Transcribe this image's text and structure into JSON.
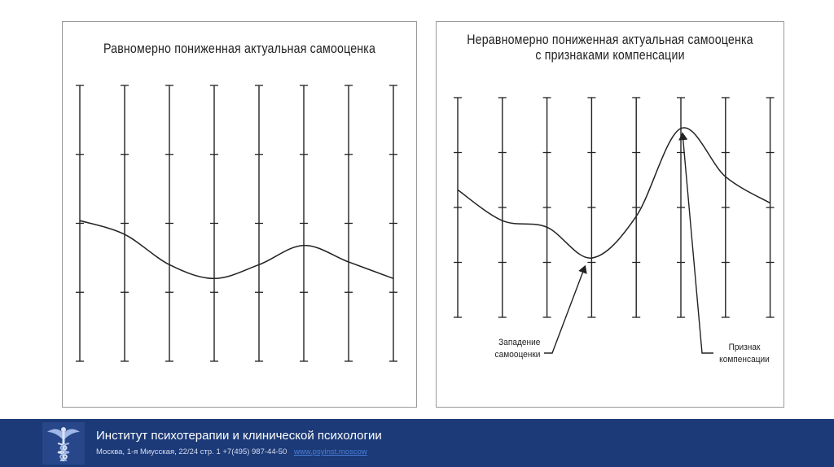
{
  "slide": {
    "institute_name": "Институт психотерапии и клинической психологии",
    "address": "Москва, 1-я Миусская, 22/24 стр. 1 +7(495) 987-44-50",
    "website": "www.psyinst.moscow",
    "logo_icon": "caduceus-psi-logo-icon",
    "colors": {
      "footer": "#1c3a78",
      "link": "#4a7fd8",
      "ink": "#222222"
    }
  },
  "chart_data": [
    {
      "type": "line",
      "title": "Равномерно пониженная актуальная самооценка",
      "scales": 8,
      "y_range": [
        0,
        100
      ],
      "tick_levels": [
        0,
        25,
        50,
        75,
        100
      ],
      "x": [
        1,
        2,
        3,
        4,
        5,
        6,
        7,
        8
      ],
      "series": [
        {
          "values": [
            51,
            46,
            35,
            30,
            35,
            42,
            36,
            30
          ]
        }
      ],
      "annotations": []
    },
    {
      "type": "line",
      "title": "Неравномерно пониженная актуальная самооценка с признаками компенсации",
      "title_lines": [
        "Неравномерно пониженная актуальная самооценка",
        "с признаками компенсации"
      ],
      "scales": 8,
      "y_range": [
        0,
        100
      ],
      "tick_levels": [
        0,
        25,
        50,
        75,
        100
      ],
      "x": [
        1,
        2,
        3,
        4,
        5,
        6,
        7,
        8
      ],
      "series": [
        {
          "values": [
            58,
            44,
            41,
            27,
            46,
            86,
            64,
            52
          ]
        }
      ],
      "annotations": [
        {
          "text_lines": [
            "Западение",
            "самооценки"
          ],
          "points_to_x": 4
        },
        {
          "text_lines": [
            "Признак",
            "компенсации"
          ],
          "points_to_x": 6
        }
      ]
    }
  ]
}
